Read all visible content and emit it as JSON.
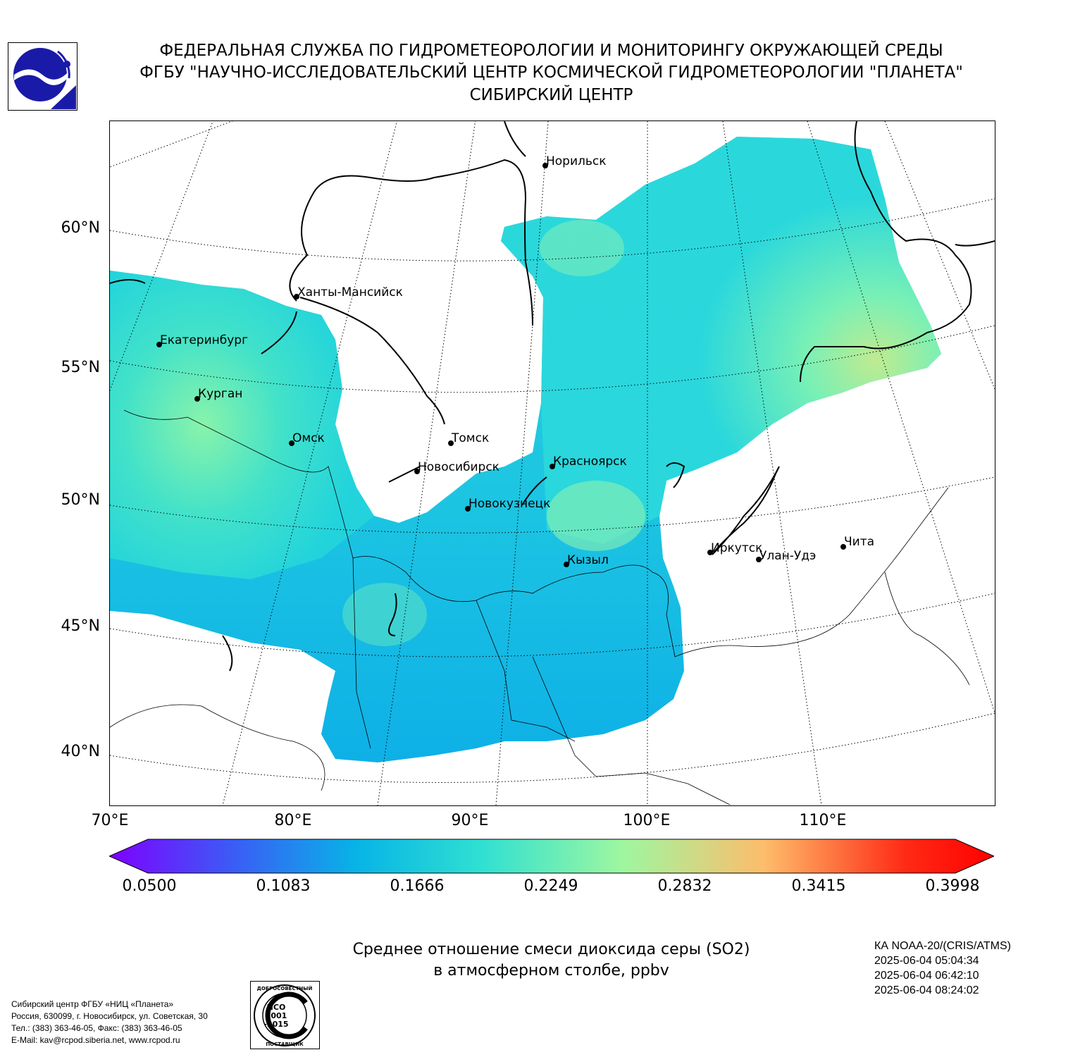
{
  "header": {
    "line1": "ФЕДЕРАЛЬНАЯ СЛУЖБА ПО ГИДРОМЕТЕОРОЛОГИИ И МОНИТОРИНГУ ОКРУЖАЮЩЕЙ СРЕДЫ",
    "line2": "ФГБУ \"НАУЧНО-ИССЛЕДОВАТЕЛЬСКИЙ ЦЕНТР КОСМИЧЕСКОЙ ГИДРОМЕТЕОРОЛОГИИ \"ПЛАНЕТА\"",
    "line3": "СИБИРСКИЙ ЦЕНТР"
  },
  "map": {
    "lat_labels": [
      "60°N",
      "55°N",
      "50°N",
      "45°N",
      "40°N"
    ],
    "lon_labels": [
      "70°E",
      "80°E",
      "90°E",
      "100°E",
      "110°E"
    ],
    "cities": [
      {
        "name": "Норильск"
      },
      {
        "name": "Ханты-Мансийск"
      },
      {
        "name": "Екатеринбург"
      },
      {
        "name": "Курган"
      },
      {
        "name": "Омск"
      },
      {
        "name": "Томск"
      },
      {
        "name": "Новосибирск"
      },
      {
        "name": "Красноярск"
      },
      {
        "name": "Новокузнецк"
      },
      {
        "name": "Кызыл"
      },
      {
        "name": "Иркутск"
      },
      {
        "name": "Улан-Удэ"
      },
      {
        "name": "Чита"
      }
    ]
  },
  "colorbar": {
    "ticks": [
      "0.0500",
      "0.1083",
      "0.1666",
      "0.2249",
      "0.2832",
      "0.3415",
      "0.3998"
    ],
    "colors": [
      "#7f00ff",
      "#3b5cf6",
      "#07b4e6",
      "#2fe0d2",
      "#9ef7a0",
      "#fdbd6b",
      "#ff2a15",
      "#ff0000"
    ]
  },
  "title": {
    "line1": "Среднее отношение смеси диоксида серы (SO2)",
    "line2": "в атмосферном столбе, ppbv"
  },
  "satellite": {
    "name": "КА NOAA-20/(CRIS/ATMS)",
    "times": [
      "2025-06-04 05:04:34",
      "2025-06-04 06:42:10",
      "2025-06-04 08:24:02"
    ]
  },
  "footer": {
    "lines": [
      "Сибирский центр ФГБУ «НИЦ «Планета»",
      "Россия, 630099, г. Новосибирск, ул. Советская, 30",
      "Тел.: (383) 363-46-05, Факс: (383) 363-46-05",
      "E-Mail: kav@rcpod.siberia.net, www.rcpod.ru"
    ]
  },
  "iso_badge": {
    "top": "ДОБРОСОВЕСТНЫЙ",
    "bottom": "ПОСТАВЩИК",
    "std": [
      "ИСО",
      "9001",
      "-2015"
    ]
  }
}
